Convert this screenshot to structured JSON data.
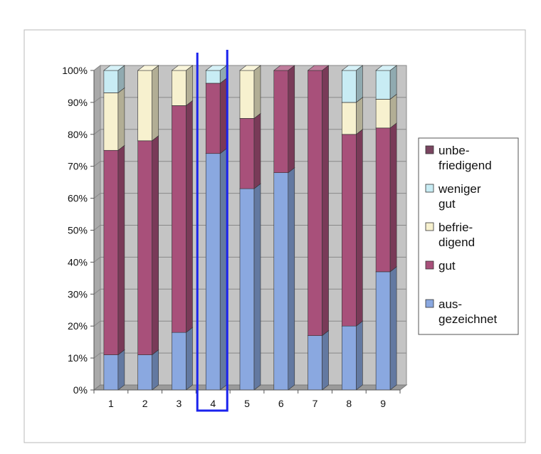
{
  "chart_data": {
    "type": "bar",
    "stacked": true,
    "three_d": true,
    "categories": [
      "1",
      "2",
      "3",
      "4",
      "5",
      "6",
      "7",
      "8",
      "9"
    ],
    "ylim": [
      0,
      100
    ],
    "y_ticks": [
      "0%",
      "10%",
      "20%",
      "30%",
      "40%",
      "50%",
      "60%",
      "70%",
      "80%",
      "90%",
      "100%"
    ],
    "grid": true,
    "legend_position": "right",
    "highlighted_category": "4",
    "series": [
      {
        "name": "aus-\ngezeichnet",
        "color": "#8aa8e0",
        "values": [
          11,
          11,
          18,
          74,
          63,
          68,
          17,
          20,
          37
        ]
      },
      {
        "name": "gut",
        "color": "#a8507a",
        "values": [
          64,
          67,
          71,
          22,
          22,
          32,
          83,
          60,
          45
        ]
      },
      {
        "name": "befrie-\ndigend",
        "color": "#f7f1cf",
        "values": [
          18,
          22,
          11,
          0,
          15,
          0,
          0,
          10,
          9
        ]
      },
      {
        "name": "weniger\ngut",
        "color": "#c8ecf4",
        "values": [
          7,
          0,
          0,
          4,
          0,
          0,
          0,
          10,
          9
        ]
      },
      {
        "name": "unbe-\nfriedigend",
        "color": "#7a4560",
        "values": [
          0,
          0,
          0,
          0,
          0,
          0,
          0,
          0,
          0
        ]
      }
    ],
    "legend_order": [
      4,
      3,
      2,
      1,
      0
    ]
  }
}
